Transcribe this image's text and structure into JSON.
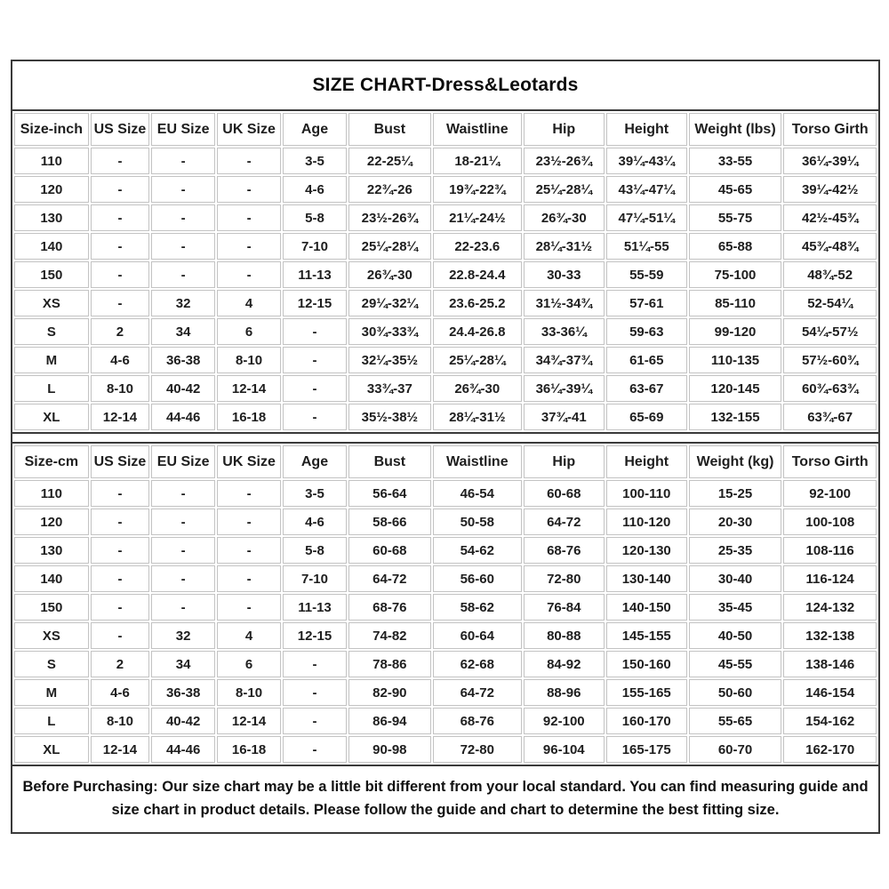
{
  "title": "SIZE CHART-Dress&Leotards",
  "tables": [
    {
      "name": "size-table-inch",
      "headers": [
        "Size-inch",
        "US Size",
        "EU Size",
        "UK Size",
        "Age",
        "Bust",
        "Waistline",
        "Hip",
        "Height",
        "Weight (lbs)",
        "Torso Girth"
      ],
      "rows": [
        [
          "110",
          "-",
          "-",
          "-",
          "3-5",
          "22-25¼",
          "18-21¼",
          "23½-26¾",
          "39¼-43¼",
          "33-55",
          "36¼-39¼"
        ],
        [
          "120",
          "-",
          "-",
          "-",
          "4-6",
          "22¾-26",
          "19¾-22¾",
          "25¼-28¼",
          "43¼-47¼",
          "45-65",
          "39¼-42½"
        ],
        [
          "130",
          "-",
          "-",
          "-",
          "5-8",
          "23½-26¾",
          "21¼-24½",
          "26¾-30",
          "47¼-51¼",
          "55-75",
          "42½-45¾"
        ],
        [
          "140",
          "-",
          "-",
          "-",
          "7-10",
          "25¼-28¼",
          "22-23.6",
          "28¼-31½",
          "51¼-55",
          "65-88",
          "45¾-48¾"
        ],
        [
          "150",
          "-",
          "-",
          "-",
          "11-13",
          "26¾-30",
          "22.8-24.4",
          "30-33",
          "55-59",
          "75-100",
          "48¾-52"
        ],
        [
          "XS",
          "-",
          "32",
          "4",
          "12-15",
          "29¼-32¼",
          "23.6-25.2",
          "31½-34¾",
          "57-61",
          "85-110",
          "52-54¼"
        ],
        [
          "S",
          "2",
          "34",
          "6",
          "-",
          "30¾-33¾",
          "24.4-26.8",
          "33-36¼",
          "59-63",
          "99-120",
          "54¼-57½"
        ],
        [
          "M",
          "4-6",
          "36-38",
          "8-10",
          "-",
          "32¼-35½",
          "25¼-28¼",
          "34¾-37¾",
          "61-65",
          "110-135",
          "57½-60¾"
        ],
        [
          "L",
          "8-10",
          "40-42",
          "12-14",
          "-",
          "33¾-37",
          "26¾-30",
          "36¼-39¼",
          "63-67",
          "120-145",
          "60¾-63¾"
        ],
        [
          "XL",
          "12-14",
          "44-46",
          "16-18",
          "-",
          "35½-38½",
          "28¼-31½",
          "37¾-41",
          "65-69",
          "132-155",
          "63¾-67"
        ]
      ]
    },
    {
      "name": "size-table-cm",
      "headers": [
        "Size-cm",
        "US Size",
        "EU Size",
        "UK Size",
        "Age",
        "Bust",
        "Waistline",
        "Hip",
        "Height",
        "Weight (kg)",
        "Torso Girth"
      ],
      "rows": [
        [
          "110",
          "-",
          "-",
          "-",
          "3-5",
          "56-64",
          "46-54",
          "60-68",
          "100-110",
          "15-25",
          "92-100"
        ],
        [
          "120",
          "-",
          "-",
          "-",
          "4-6",
          "58-66",
          "50-58",
          "64-72",
          "110-120",
          "20-30",
          "100-108"
        ],
        [
          "130",
          "-",
          "-",
          "-",
          "5-8",
          "60-68",
          "54-62",
          "68-76",
          "120-130",
          "25-35",
          "108-116"
        ],
        [
          "140",
          "-",
          "-",
          "-",
          "7-10",
          "64-72",
          "56-60",
          "72-80",
          "130-140",
          "30-40",
          "116-124"
        ],
        [
          "150",
          "-",
          "-",
          "-",
          "11-13",
          "68-76",
          "58-62",
          "76-84",
          "140-150",
          "35-45",
          "124-132"
        ],
        [
          "XS",
          "-",
          "32",
          "4",
          "12-15",
          "74-82",
          "60-64",
          "80-88",
          "145-155",
          "40-50",
          "132-138"
        ],
        [
          "S",
          "2",
          "34",
          "6",
          "-",
          "78-86",
          "62-68",
          "84-92",
          "150-160",
          "45-55",
          "138-146"
        ],
        [
          "M",
          "4-6",
          "36-38",
          "8-10",
          "-",
          "82-90",
          "64-72",
          "88-96",
          "155-165",
          "50-60",
          "146-154"
        ],
        [
          "L",
          "8-10",
          "40-42",
          "12-14",
          "-",
          "86-94",
          "68-76",
          "92-100",
          "160-170",
          "55-65",
          "154-162"
        ],
        [
          "XL",
          "12-14",
          "44-46",
          "16-18",
          "-",
          "90-98",
          "72-80",
          "96-104",
          "165-175",
          "60-70",
          "162-170"
        ]
      ]
    }
  ],
  "note": "Before Purchasing: Our size chart may be a little bit different from your local standard. You can find measuring guide and size chart in product details. Please follow the guide and chart to determine the best fitting size."
}
